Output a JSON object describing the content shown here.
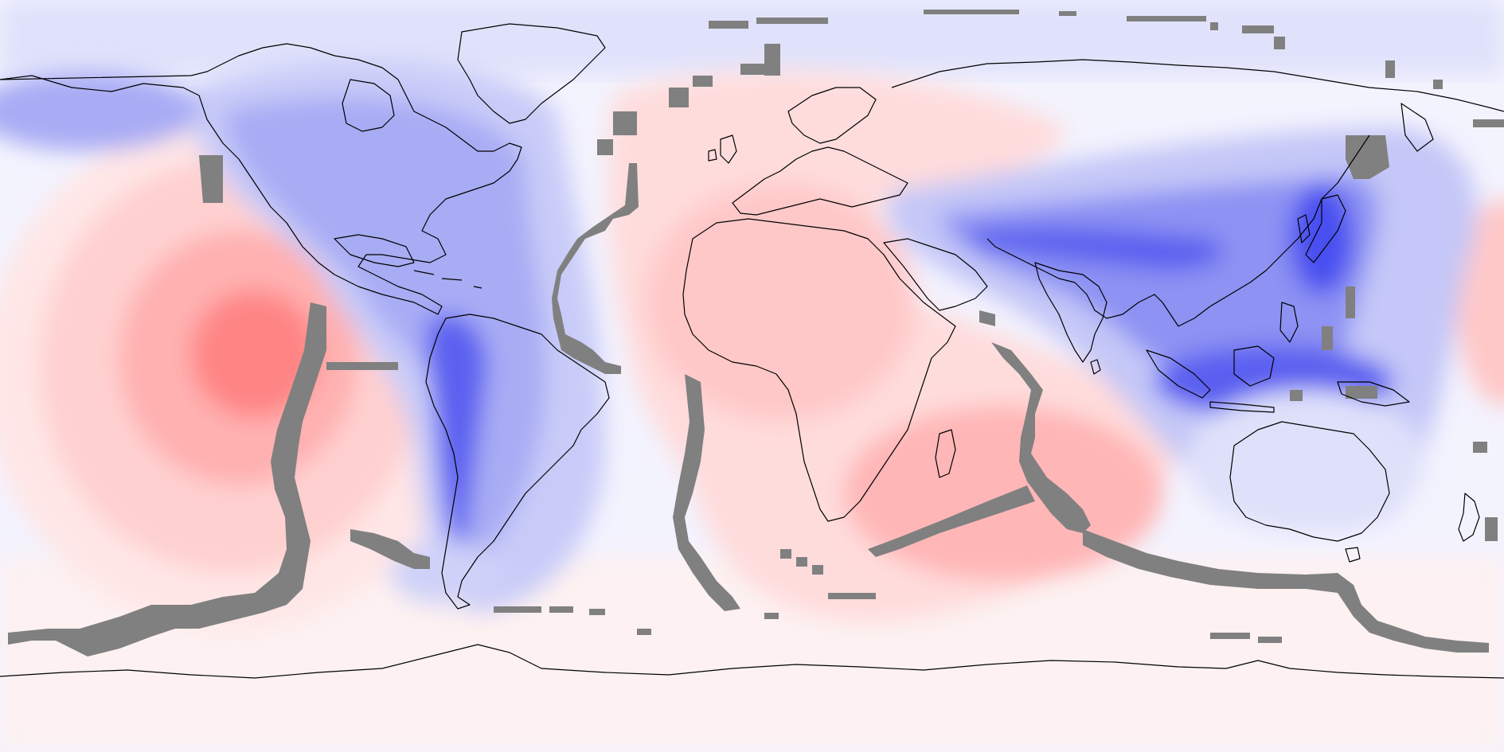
{
  "map": {
    "projection": "equirectangular",
    "field": "diverging-anomaly",
    "colors": {
      "ocean_base": "#e9ebfb",
      "strong_positive": "#ff8080",
      "mid_positive": "#ffc8c8",
      "weak_positive": "#ffecec",
      "neutral": "#f8f8ff",
      "weak_negative": "#dcdcfb",
      "mid_negative": "#aeb0f6",
      "strong_negative": "#3b40f0",
      "masked": "#808080",
      "coastline": "#000000"
    },
    "layers": [
      "field-contours",
      "masked-cells",
      "coastlines"
    ]
  }
}
